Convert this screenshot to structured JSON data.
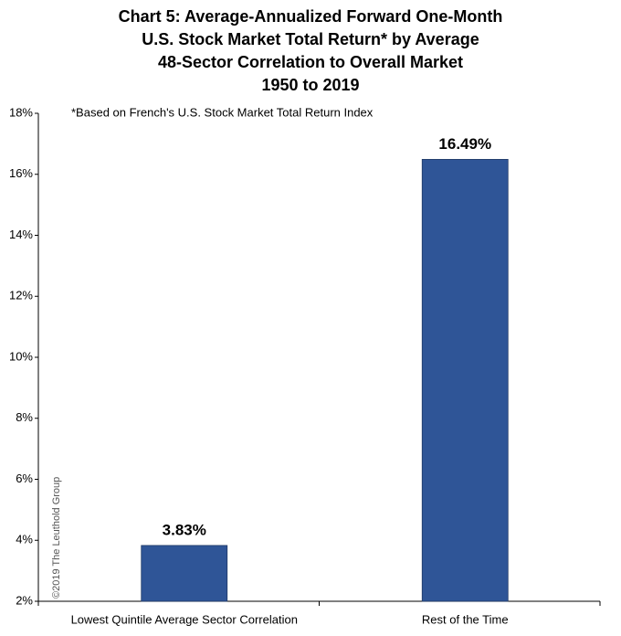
{
  "chart_data": {
    "type": "bar",
    "title": [
      "Chart 5: Average-Annualized Forward One-Month",
      "U.S. Stock Market Total Return* by Average",
      "48-Sector Correlation to Overall Market",
      "1950 to 2019"
    ],
    "annotation": "*Based on French's U.S. Stock Market Total Return Index",
    "credit": "©2019 The Leuthold Group",
    "categories": [
      "Lowest Quintile Average Sector Correlation",
      "Rest of the Time"
    ],
    "values": [
      3.83,
      16.49
    ],
    "value_labels": [
      "3.83%",
      "16.49%"
    ],
    "color": "#2f5597",
    "ylim": [
      2,
      18
    ],
    "yticks": [
      {
        "value": 2,
        "label": "2%"
      },
      {
        "value": 4,
        "label": "4%"
      },
      {
        "value": 6,
        "label": "6%"
      },
      {
        "value": 8,
        "label": "8%"
      },
      {
        "value": 10,
        "label": "10%"
      },
      {
        "value": 12,
        "label": "12%"
      },
      {
        "value": 14,
        "label": "14%"
      },
      {
        "value": 16,
        "label": "16%"
      },
      {
        "value": 18,
        "label": "18%"
      }
    ],
    "grid": false
  }
}
